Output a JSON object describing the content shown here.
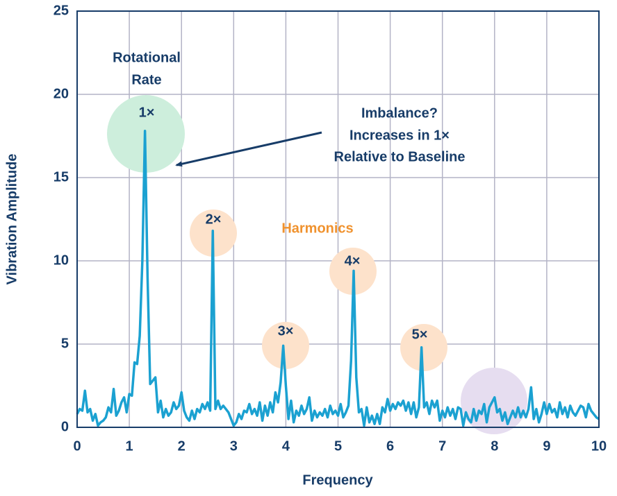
{
  "chart_data": {
    "type": "line",
    "x_label": "Frequency",
    "y_label": "Vibration Amplitude",
    "xlim": [
      0,
      10
    ],
    "ylim": [
      0,
      25
    ],
    "xticks": [
      0,
      1,
      2,
      3,
      4,
      5,
      6,
      7,
      8,
      9,
      10
    ],
    "yticks": [
      0,
      5,
      10,
      15,
      20,
      25
    ],
    "grid": true,
    "annotations": {
      "rotational_rate": [
        "Rotational",
        "Rate"
      ],
      "imbalance": [
        "Imbalance?",
        "Increases in 1×",
        "Relative to Baseline"
      ],
      "harmonics": "Harmonics",
      "peak_labels": [
        "1×",
        "2×",
        "3×",
        "4×",
        "5×"
      ]
    },
    "x": [
      0,
      0.05,
      0.1,
      0.15,
      0.2,
      0.25,
      0.3,
      0.35,
      0.4,
      0.45,
      0.5,
      0.55,
      0.6,
      0.65,
      0.7,
      0.75,
      0.8,
      0.85,
      0.9,
      0.95,
      1,
      1.05,
      1.1,
      1.15,
      1.2,
      1.25,
      1.3,
      1.35,
      1.4,
      1.45,
      1.5,
      1.55,
      1.6,
      1.65,
      1.7,
      1.75,
      1.8,
      1.85,
      1.9,
      1.95,
      2,
      2.05,
      2.1,
      2.15,
      2.2,
      2.25,
      2.3,
      2.35,
      2.4,
      2.45,
      2.5,
      2.55,
      2.6,
      2.65,
      2.7,
      2.75,
      2.8,
      2.85,
      2.9,
      2.95,
      3,
      3.05,
      3.1,
      3.15,
      3.2,
      3.25,
      3.3,
      3.35,
      3.4,
      3.45,
      3.5,
      3.55,
      3.6,
      3.65,
      3.7,
      3.75,
      3.8,
      3.85,
      3.9,
      3.95,
      4,
      4.05,
      4.1,
      4.15,
      4.2,
      4.25,
      4.3,
      4.35,
      4.4,
      4.45,
      4.5,
      4.55,
      4.6,
      4.65,
      4.7,
      4.75,
      4.8,
      4.85,
      4.9,
      4.95,
      5,
      5.05,
      5.1,
      5.15,
      5.2,
      5.25,
      5.3,
      5.35,
      5.4,
      5.45,
      5.5,
      5.55,
      5.6,
      5.65,
      5.7,
      5.75,
      5.8,
      5.85,
      5.9,
      5.95,
      6,
      6.05,
      6.1,
      6.15,
      6.2,
      6.25,
      6.3,
      6.35,
      6.4,
      6.45,
      6.5,
      6.55,
      6.6,
      6.65,
      6.7,
      6.75,
      6.8,
      6.85,
      6.9,
      6.95,
      7,
      7.05,
      7.1,
      7.15,
      7.2,
      7.25,
      7.3,
      7.35,
      7.4,
      7.45,
      7.5,
      7.55,
      7.6,
      7.65,
      7.7,
      7.75,
      7.8,
      7.85,
      7.9,
      7.95,
      8,
      8.05,
      8.1,
      8.15,
      8.2,
      8.25,
      8.3,
      8.35,
      8.4,
      8.45,
      8.5,
      8.55,
      8.6,
      8.65,
      8.7,
      8.75,
      8.8,
      8.85,
      8.9,
      8.95,
      9,
      9.05,
      9.1,
      9.15,
      9.2,
      9.25,
      9.3,
      9.35,
      9.4,
      9.45,
      9.5,
      9.55,
      9.6,
      9.65,
      9.7,
      9.75,
      9.8,
      9.85,
      9.9,
      9.95,
      10
    ],
    "series": [
      {
        "color": "#1ba1d1",
        "values": [
          0.8,
          1.1,
          1,
          2.2,
          0.9,
          1.1,
          0.4,
          0.8,
          0.1,
          0.3,
          0.4,
          0.6,
          1.2,
          0.9,
          2.3,
          0.7,
          1.0,
          1.5,
          1.8,
          0.9,
          2.0,
          1.9,
          3.9,
          3.8,
          5.5,
          10,
          17.8,
          9,
          2.6,
          2.8,
          3.0,
          0.9,
          1.6,
          0.6,
          1.1,
          0.7,
          0.9,
          1.5,
          1.1,
          1.3,
          2.1,
          1.0,
          0.6,
          0.4,
          1.0,
          0.5,
          1.1,
          0.9,
          1.4,
          1.1,
          1.5,
          1.0,
          11.8,
          1.1,
          1.6,
          1.1,
          1.3,
          1.1,
          0.9,
          0.5,
          0.1,
          0.3,
          0.8,
          0.5,
          1.0,
          0.9,
          1.4,
          0.8,
          1.1,
          0.7,
          1.5,
          0.4,
          1.3,
          0.7,
          1.5,
          0.9,
          2.1,
          1.5,
          2.7,
          4.9,
          2.5,
          0.5,
          1.6,
          0.3,
          1.0,
          0.7,
          1.3,
          0.8,
          1.1,
          1.8,
          0.4,
          1.0,
          0.6,
          0.9,
          0.7,
          1.1,
          0.6,
          1.3,
          0.8,
          1.0,
          0.7,
          1.4,
          0.6,
          0.9,
          1.3,
          4,
          9.4,
          3,
          0.9,
          1.1,
          0.1,
          1.2,
          0.3,
          0.7,
          0.2,
          0.8,
          0.2,
          1.2,
          0.9,
          1.7,
          1.0,
          1.4,
          1.1,
          1.5,
          1.3,
          1.6,
          1.0,
          1.5,
          0.8,
          1.5,
          0.6,
          1.2,
          4.8,
          1.2,
          1.5,
          0.8,
          1.6,
          1.2,
          1.6,
          0.4,
          1.0,
          0.6,
          1.2,
          0.7,
          1.1,
          0.5,
          1.2,
          1.1,
          0.1,
          0.9,
          0.5,
          0.3,
          1.1,
          0.4,
          1.0,
          0.8,
          1.4,
          0.3,
          1.2,
          1.5,
          1.8,
          0.9,
          1.1,
          0.4,
          0.9,
          0.2,
          0.6,
          1.0,
          0.6,
          1.2,
          0.6,
          1.0,
          0.6,
          1.1,
          2.4,
          0.5,
          1.1,
          0.3,
          0.8,
          1.5,
          0.8,
          1.4,
          0.9,
          1.1,
          0.6,
          1.5,
          0.8,
          1.2,
          0.6,
          1.3,
          0.9,
          0.7,
          1.0,
          1.3,
          1.2,
          0.6,
          1.4,
          1.0,
          0.8,
          0.6,
          0.5
        ]
      }
    ]
  }
}
